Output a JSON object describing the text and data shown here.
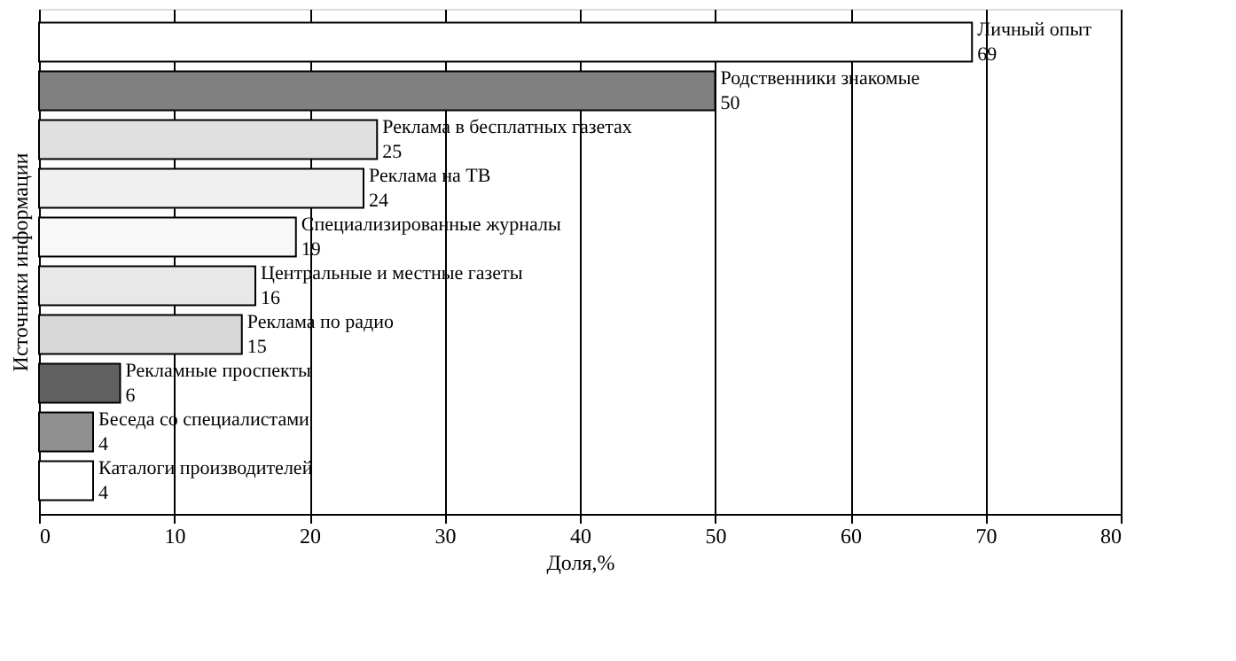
{
  "chart_data": {
    "type": "bar",
    "orientation": "horizontal",
    "xlabel": "Доля,%",
    "ylabel": "Источники информации",
    "categories": [
      "Личный опыт",
      "Родственники знакомые",
      "Реклама в бесплатных газетах",
      "Реклама на ТВ",
      "Специализированные журналы",
      "Центральные и местные газеты",
      "Реклама по радио",
      "Рекламные проспекты",
      "Беседа со специалистами",
      "Каталоги производителей"
    ],
    "values": [
      69,
      50,
      25,
      24,
      19,
      16,
      15,
      6,
      4,
      4
    ],
    "colors": [
      "#ffffff",
      "#808080",
      "#e0e0e0",
      "#f0f0f0",
      "#f8f8f8",
      "#e8e8e8",
      "#d8d8d8",
      "#606060",
      "#909090",
      "#ffffff"
    ],
    "xlim": [
      0,
      80
    ],
    "xticks": [
      0,
      10,
      20,
      30,
      40,
      50,
      60,
      70,
      80
    ],
    "grid": "x",
    "data_labels": true,
    "tick_labels": "x"
  }
}
